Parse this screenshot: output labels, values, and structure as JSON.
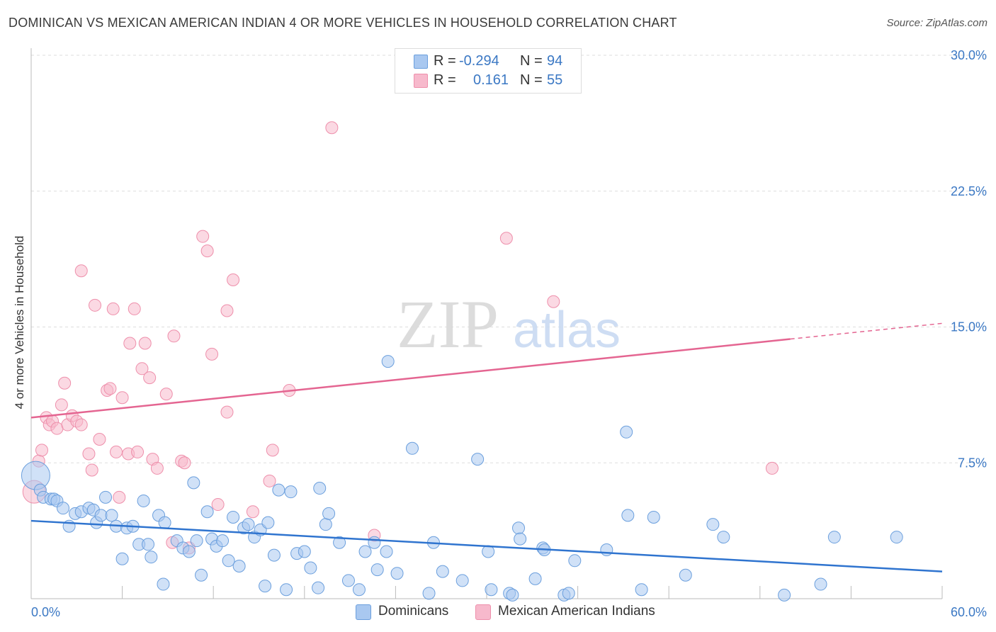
{
  "title": "DOMINICAN VS MEXICAN AMERICAN INDIAN 4 OR MORE VEHICLES IN HOUSEHOLD CORRELATION CHART",
  "source": "Source: ZipAtlas.com",
  "watermark": {
    "zip": "ZIP",
    "atlas": "atlas"
  },
  "legend": {
    "rows": [
      {
        "r_label": "R =",
        "r_value": "-0.294",
        "n_label": "N =",
        "n_value": "94"
      },
      {
        "r_label": "R =",
        "r_value": "0.161",
        "n_label": "N =",
        "n_value": "55"
      }
    ]
  },
  "bottom_legend": [
    "Dominicans",
    "Mexican American Indians"
  ],
  "colors": {
    "blue_fill": "#a9c8f0",
    "blue_stroke": "#6b9fdd",
    "blue_line": "#2f74cf",
    "pink_fill": "#f7b9cc",
    "pink_stroke": "#ee8fab",
    "pink_line": "#e46591",
    "tick_label": "#3b78c4",
    "grid": "#dddddd"
  },
  "chart_data": {
    "type": "scatter",
    "title": "DOMINICAN VS MEXICAN AMERICAN INDIAN 4 OR MORE VEHICLES IN HOUSEHOLD CORRELATION CHART",
    "xlabel": "",
    "ylabel": "4 or more Vehicles in Household",
    "xlim": [
      0,
      60
    ],
    "ylim": [
      0,
      30
    ],
    "x_tick_labels": [
      "0.0%",
      "60.0%"
    ],
    "y_ticks": [
      7.5,
      15.0,
      22.5,
      30.0
    ],
    "y_tick_labels": [
      "7.5%",
      "15.0%",
      "22.5%",
      "30.0%"
    ],
    "grid": true,
    "legend_position": "top-center",
    "series": [
      {
        "name": "Dominicans",
        "r": -0.294,
        "n": 94,
        "trend": {
          "x": [
            0,
            60
          ],
          "y": [
            4.3,
            1.5
          ]
        },
        "points": [
          [
            0.3,
            6.8
          ],
          [
            0.6,
            6.0
          ],
          [
            0.8,
            5.6
          ],
          [
            1.3,
            5.5
          ],
          [
            1.5,
            5.5
          ],
          [
            1.7,
            5.4
          ],
          [
            2.1,
            5.0
          ],
          [
            2.5,
            4.0
          ],
          [
            2.9,
            4.7
          ],
          [
            3.3,
            4.8
          ],
          [
            3.8,
            5.0
          ],
          [
            4.1,
            4.9
          ],
          [
            4.3,
            4.2
          ],
          [
            4.6,
            4.6
          ],
          [
            4.9,
            5.6
          ],
          [
            5.3,
            4.6
          ],
          [
            5.6,
            4.0
          ],
          [
            6.0,
            2.2
          ],
          [
            6.3,
            3.9
          ],
          [
            6.7,
            4.0
          ],
          [
            7.1,
            3.0
          ],
          [
            7.4,
            5.4
          ],
          [
            7.7,
            3.0
          ],
          [
            7.9,
            2.3
          ],
          [
            8.4,
            4.6
          ],
          [
            8.7,
            0.8
          ],
          [
            8.8,
            4.2
          ],
          [
            9.6,
            3.2
          ],
          [
            10.0,
            2.8
          ],
          [
            10.4,
            2.6
          ],
          [
            10.7,
            6.4
          ],
          [
            10.9,
            3.2
          ],
          [
            11.2,
            1.3
          ],
          [
            11.6,
            4.8
          ],
          [
            11.9,
            3.3
          ],
          [
            12.2,
            2.9
          ],
          [
            12.6,
            3.2
          ],
          [
            13.0,
            2.1
          ],
          [
            13.3,
            4.5
          ],
          [
            13.7,
            1.8
          ],
          [
            14.0,
            3.9
          ],
          [
            14.3,
            4.1
          ],
          [
            14.7,
            3.4
          ],
          [
            15.1,
            3.8
          ],
          [
            15.4,
            0.7
          ],
          [
            15.6,
            4.2
          ],
          [
            16.0,
            2.4
          ],
          [
            16.3,
            6.0
          ],
          [
            16.8,
            0.5
          ],
          [
            17.1,
            5.9
          ],
          [
            17.5,
            2.5
          ],
          [
            18.0,
            2.6
          ],
          [
            18.4,
            1.7
          ],
          [
            18.9,
            0.6
          ],
          [
            19.0,
            6.1
          ],
          [
            19.4,
            4.1
          ],
          [
            19.6,
            4.7
          ],
          [
            20.3,
            3.1
          ],
          [
            20.9,
            1.0
          ],
          [
            21.6,
            0.5
          ],
          [
            22.0,
            2.6
          ],
          [
            22.6,
            3.1
          ],
          [
            22.8,
            1.6
          ],
          [
            23.5,
            13.1
          ],
          [
            23.4,
            2.6
          ],
          [
            24.1,
            1.4
          ],
          [
            25.1,
            8.3
          ],
          [
            26.2,
            0.3
          ],
          [
            26.5,
            3.1
          ],
          [
            27.1,
            1.5
          ],
          [
            28.4,
            1.0
          ],
          [
            29.4,
            7.7
          ],
          [
            30.1,
            2.6
          ],
          [
            30.3,
            0.5
          ],
          [
            31.5,
            0.3
          ],
          [
            31.7,
            0.2
          ],
          [
            32.1,
            3.9
          ],
          [
            32.2,
            3.3
          ],
          [
            33.2,
            1.1
          ],
          [
            33.7,
            2.8
          ],
          [
            33.8,
            2.7
          ],
          [
            35.1,
            0.2
          ],
          [
            35.4,
            0.3
          ],
          [
            35.8,
            2.1
          ],
          [
            37.9,
            2.7
          ],
          [
            39.2,
            9.2
          ],
          [
            39.3,
            4.6
          ],
          [
            40.2,
            0.5
          ],
          [
            41.0,
            4.5
          ],
          [
            43.1,
            1.3
          ],
          [
            44.9,
            4.1
          ],
          [
            45.6,
            3.4
          ],
          [
            49.6,
            0.2
          ],
          [
            52.0,
            0.8
          ],
          [
            52.9,
            3.4
          ],
          [
            57.0,
            3.4
          ]
        ]
      },
      {
        "name": "Mexican American Indians",
        "r": 0.161,
        "n": 55,
        "trend": {
          "x": [
            0,
            60
          ],
          "y": [
            10.0,
            15.2
          ],
          "solid_until_x": 50.0
        },
        "points": [
          [
            0.2,
            5.9
          ],
          [
            0.5,
            7.6
          ],
          [
            0.7,
            8.2
          ],
          [
            1.0,
            10.0
          ],
          [
            1.2,
            9.6
          ],
          [
            1.4,
            9.8
          ],
          [
            1.7,
            9.4
          ],
          [
            2.0,
            10.7
          ],
          [
            2.2,
            11.9
          ],
          [
            2.4,
            9.6
          ],
          [
            2.7,
            10.1
          ],
          [
            3.0,
            9.8
          ],
          [
            3.3,
            9.6
          ],
          [
            3.3,
            18.1
          ],
          [
            3.8,
            8.0
          ],
          [
            4.0,
            7.1
          ],
          [
            4.2,
            16.2
          ],
          [
            4.5,
            8.8
          ],
          [
            5.0,
            11.5
          ],
          [
            5.2,
            11.6
          ],
          [
            5.4,
            16.0
          ],
          [
            5.6,
            8.1
          ],
          [
            5.8,
            5.6
          ],
          [
            6.0,
            11.1
          ],
          [
            6.4,
            8.0
          ],
          [
            6.5,
            14.1
          ],
          [
            6.8,
            16.0
          ],
          [
            7.0,
            8.1
          ],
          [
            7.3,
            12.7
          ],
          [
            7.5,
            14.1
          ],
          [
            7.8,
            12.2
          ],
          [
            8.0,
            7.7
          ],
          [
            8.3,
            7.2
          ],
          [
            8.9,
            11.3
          ],
          [
            9.3,
            3.1
          ],
          [
            9.4,
            14.5
          ],
          [
            9.9,
            7.6
          ],
          [
            10.1,
            7.5
          ],
          [
            10.4,
            2.8
          ],
          [
            11.3,
            20.0
          ],
          [
            11.6,
            19.2
          ],
          [
            11.9,
            13.5
          ],
          [
            12.3,
            5.2
          ],
          [
            12.9,
            10.3
          ],
          [
            12.9,
            15.9
          ],
          [
            13.3,
            17.6
          ],
          [
            14.6,
            4.8
          ],
          [
            15.7,
            6.5
          ],
          [
            15.9,
            8.2
          ],
          [
            17.0,
            11.5
          ],
          [
            22.6,
            3.5
          ],
          [
            19.8,
            26.0
          ],
          [
            31.3,
            19.9
          ],
          [
            34.4,
            16.4
          ],
          [
            48.8,
            7.2
          ]
        ]
      }
    ]
  }
}
